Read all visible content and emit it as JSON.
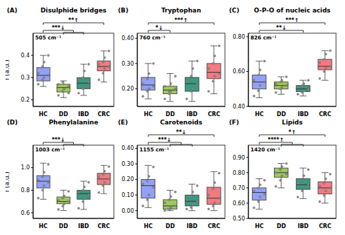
{
  "chart_data": [
    {
      "type": "box",
      "panel_label": "(A)",
      "title": "Disulphide bridges",
      "annotation": "505 cm⁻¹",
      "y_label": "I (a.u.)",
      "categories": [
        "HC",
        "DD",
        "IBD",
        "CRC"
      ],
      "colors": [
        "#7f8ff4",
        "#8cbf3f",
        "#17876a",
        "#f0636b"
      ],
      "ylim": [
        0.17,
        0.5
      ],
      "yticks": [
        0.2,
        0.3,
        0.4
      ],
      "boxes": [
        {
          "whisker_low": 0.26,
          "q1": 0.285,
          "median": 0.31,
          "q3": 0.345,
          "whisker_high": 0.4
        },
        {
          "whisker_low": 0.21,
          "q1": 0.235,
          "median": 0.255,
          "q3": 0.27,
          "whisker_high": 0.285
        },
        {
          "whisker_low": 0.22,
          "q1": 0.25,
          "median": 0.275,
          "q3": 0.3,
          "whisker_high": 0.36
        },
        {
          "whisker_low": 0.28,
          "q1": 0.33,
          "median": 0.35,
          "q3": 0.375,
          "whisker_high": 0.42
        }
      ],
      "points": [
        [
          0.27,
          0.29,
          0.3,
          0.31,
          0.32,
          0.35,
          0.37,
          0.4
        ],
        [
          0.22,
          0.24,
          0.25,
          0.26,
          0.27,
          0.28,
          0.25,
          0.23
        ],
        [
          0.23,
          0.25,
          0.26,
          0.28,
          0.29,
          0.3,
          0.33,
          0.36
        ],
        [
          0.29,
          0.32,
          0.34,
          0.35,
          0.36,
          0.37,
          0.39,
          0.42
        ]
      ],
      "significance": [
        {
          "text": "***↓",
          "groups": [
            "HC",
            "DD",
            "IBD"
          ]
        },
        {
          "text": "**↑",
          "groups": [
            "HC",
            "CRC"
          ]
        }
      ]
    },
    {
      "type": "box",
      "panel_label": "(B)",
      "title": "Tryptophan",
      "annotation": "760 cm⁻¹",
      "categories": [
        "HC",
        "DD",
        "IBD",
        "CRC"
      ],
      "colors": [
        "#7f8ff4",
        "#8cbf3f",
        "#17876a",
        "#f0636b"
      ],
      "ylim": [
        0.13,
        0.42
      ],
      "yticks": [
        {
          "value": 0.2,
          "label": "0.20"
        },
        {
          "value": 0.3,
          "label": "0.30"
        },
        {
          "value": 0.4,
          "label": "0.40"
        }
      ],
      "boxes": [
        {
          "whisker_low": 0.16,
          "q1": 0.195,
          "median": 0.215,
          "q3": 0.245,
          "whisker_high": 0.3
        },
        {
          "whisker_low": 0.15,
          "q1": 0.18,
          "median": 0.195,
          "q3": 0.21,
          "whisker_high": 0.26
        },
        {
          "whisker_low": 0.15,
          "q1": 0.19,
          "median": 0.22,
          "q3": 0.245,
          "whisker_high": 0.31
        },
        {
          "whisker_low": 0.18,
          "q1": 0.24,
          "median": 0.265,
          "q3": 0.3,
          "whisker_high": 0.37
        }
      ],
      "points": [
        [
          0.17,
          0.19,
          0.2,
          0.21,
          0.22,
          0.24,
          0.26,
          0.3
        ],
        [
          0.16,
          0.18,
          0.19,
          0.2,
          0.21,
          0.19,
          0.22,
          0.25
        ],
        [
          0.16,
          0.19,
          0.2,
          0.22,
          0.23,
          0.25,
          0.28,
          0.31
        ],
        [
          0.19,
          0.23,
          0.25,
          0.26,
          0.28,
          0.3,
          0.33,
          0.37
        ]
      ],
      "significance": [
        {
          "text": "*↓",
          "groups": [
            "HC",
            "DD"
          ]
        },
        {
          "text": "***↑",
          "groups": [
            "HC",
            "CRC"
          ]
        }
      ]
    },
    {
      "type": "box",
      "panel_label": "(C)",
      "title": "O-P-O of nucleic acids",
      "annotation": "826 cm⁻¹",
      "categories": [
        "HC",
        "DD",
        "IBD",
        "CRC"
      ],
      "colors": [
        "#7f8ff4",
        "#8cbf3f",
        "#17876a",
        "#f0636b"
      ],
      "ylim": [
        0.4,
        0.82
      ],
      "yticks": [
        {
          "value": 0.4,
          "label": "0.40"
        },
        {
          "value": 0.6,
          "label": "0.60"
        },
        {
          "value": 0.8,
          "label": "0.80"
        }
      ],
      "boxes": [
        {
          "whisker_low": 0.45,
          "q1": 0.5,
          "median": 0.54,
          "q3": 0.58,
          "whisker_high": 0.66
        },
        {
          "whisker_low": 0.47,
          "q1": 0.5,
          "median": 0.52,
          "q3": 0.54,
          "whisker_high": 0.57
        },
        {
          "whisker_low": 0.46,
          "q1": 0.485,
          "median": 0.5,
          "q3": 0.52,
          "whisker_high": 0.55
        },
        {
          "whisker_low": 0.55,
          "q1": 0.61,
          "median": 0.63,
          "q3": 0.67,
          "whisker_high": 0.72
        }
      ],
      "points": [
        [
          0.46,
          0.49,
          0.52,
          0.54,
          0.55,
          0.58,
          0.61,
          0.66
        ],
        [
          0.48,
          0.5,
          0.51,
          0.52,
          0.53,
          0.54,
          0.55,
          0.57
        ],
        [
          0.47,
          0.48,
          0.49,
          0.5,
          0.51,
          0.52,
          0.53,
          0.55
        ],
        [
          0.56,
          0.6,
          0.62,
          0.63,
          0.65,
          0.67,
          0.7,
          0.72
        ]
      ],
      "significance": [
        {
          "text": "**↓",
          "groups": [
            "HC",
            "IBD"
          ]
        },
        {
          "text": "***↑",
          "groups": [
            "HC",
            "CRC"
          ]
        }
      ]
    },
    {
      "type": "box",
      "panel_label": "(D)",
      "title": "Phenylalanine",
      "annotation": "1003 cm⁻¹",
      "y_label": "I (a.u.)",
      "categories": [
        "HC",
        "DD",
        "IBD",
        "CRC"
      ],
      "colors": [
        "#7f8ff4",
        "#8cbf3f",
        "#17876a",
        "#f0636b"
      ],
      "ylim": [
        0.55,
        1.2
      ],
      "yticks": [
        0.6,
        0.8,
        {
          "value": 1.0,
          "label": "1.0"
        }
      ],
      "boxes": [
        {
          "whisker_low": 0.72,
          "q1": 0.82,
          "median": 0.88,
          "q3": 0.93,
          "whisker_high": 1.04
        },
        {
          "whisker_low": 0.62,
          "q1": 0.68,
          "median": 0.7,
          "q3": 0.74,
          "whisker_high": 0.8
        },
        {
          "whisker_low": 0.63,
          "q1": 0.72,
          "median": 0.77,
          "q3": 0.8,
          "whisker_high": 0.88
        },
        {
          "whisker_low": 0.77,
          "q1": 0.85,
          "median": 0.9,
          "q3": 0.95,
          "whisker_high": 1.02
        }
      ],
      "points": [
        [
          0.73,
          0.8,
          0.84,
          0.87,
          0.89,
          0.92,
          0.96,
          1.03
        ],
        [
          0.63,
          0.66,
          0.68,
          0.7,
          0.71,
          0.73,
          0.75,
          0.79
        ],
        [
          0.64,
          0.7,
          0.73,
          0.76,
          0.78,
          0.8,
          0.83,
          0.87
        ],
        [
          0.78,
          0.84,
          0.87,
          0.9,
          0.92,
          0.94,
          0.97,
          1.01
        ]
      ],
      "significance": [
        {
          "text": "***↓",
          "groups": [
            "HC",
            "DD",
            "IBD"
          ]
        }
      ]
    },
    {
      "type": "box",
      "panel_label": "(E)",
      "title": "Carotenoids",
      "annotation": "1155 cm⁻¹",
      "categories": [
        "HC",
        "DD",
        "IBD",
        "CRC"
      ],
      "colors": [
        "#7f8ff4",
        "#8cbf3f",
        "#17876a",
        "#f0636b"
      ],
      "ylim": [
        -0.05,
        0.42
      ],
      "yticks": [
        {
          "value": 0,
          "label": "0.00"
        },
        {
          "value": 0.1,
          "label": "0.10"
        },
        {
          "value": 0.2,
          "label": "0.20"
        },
        {
          "value": 0.3,
          "label": "0.30"
        },
        {
          "value": 0.4,
          "label": "0.40"
        }
      ],
      "boxes": [
        {
          "whisker_low": 0.02,
          "q1": 0.08,
          "median": 0.16,
          "q3": 0.2,
          "whisker_high": 0.29
        },
        {
          "whisker_low": 0.0,
          "q1": 0.01,
          "median": 0.03,
          "q3": 0.07,
          "whisker_high": 0.13
        },
        {
          "whisker_low": 0.0,
          "q1": 0.03,
          "median": 0.06,
          "q3": 0.1,
          "whisker_high": 0.17
        },
        {
          "whisker_low": 0.0,
          "q1": 0.04,
          "median": 0.08,
          "q3": 0.15,
          "whisker_high": 0.25
        }
      ],
      "points": [
        [
          0.03,
          0.07,
          0.1,
          0.15,
          0.17,
          0.19,
          0.22,
          0.28
        ],
        [
          0.0,
          0.01,
          0.02,
          0.03,
          0.05,
          0.07,
          0.09,
          0.12
        ],
        [
          0.01,
          0.02,
          0.04,
          0.06,
          0.07,
          0.09,
          0.12,
          0.16
        ],
        [
          0.01,
          0.03,
          0.05,
          0.08,
          0.1,
          0.14,
          0.18,
          0.24
        ]
      ],
      "significance": [
        {
          "text": "***↓",
          "groups": [
            "HC",
            "DD",
            "IBD"
          ]
        },
        {
          "text": "**↓",
          "groups": [
            "HC",
            "CRC"
          ]
        }
      ]
    },
    {
      "type": "box",
      "panel_label": "(F)",
      "title": "Lipids",
      "annotation": "1420 cm⁻¹",
      "categories": [
        "HC",
        "DD",
        "IBD",
        "CRC"
      ],
      "colors": [
        "#7f8ff4",
        "#8cbf3f",
        "#17876a",
        "#f0636b"
      ],
      "ylim": [
        0.5,
        0.98
      ],
      "yticks": [
        {
          "value": 0.5,
          "label": "0.50"
        },
        {
          "value": 0.6,
          "label": "0.60"
        },
        {
          "value": 0.7,
          "label": "0.70"
        },
        {
          "value": 0.8,
          "label": "0.80"
        },
        {
          "value": 0.9,
          "label": "0.90"
        }
      ],
      "boxes": [
        {
          "whisker_low": 0.56,
          "q1": 0.62,
          "median": 0.67,
          "q3": 0.7,
          "whisker_high": 0.76
        },
        {
          "whisker_low": 0.7,
          "q1": 0.77,
          "median": 0.8,
          "q3": 0.83,
          "whisker_high": 0.86
        },
        {
          "whisker_low": 0.63,
          "q1": 0.69,
          "median": 0.72,
          "q3": 0.76,
          "whisker_high": 0.83
        },
        {
          "whisker_low": 0.6,
          "q1": 0.66,
          "median": 0.7,
          "q3": 0.74,
          "whisker_high": 0.8
        }
      ],
      "points": [
        [
          0.57,
          0.61,
          0.64,
          0.66,
          0.68,
          0.7,
          0.72,
          0.75
        ],
        [
          0.71,
          0.75,
          0.78,
          0.79,
          0.8,
          0.82,
          0.84,
          0.86
        ],
        [
          0.64,
          0.68,
          0.7,
          0.72,
          0.73,
          0.75,
          0.78,
          0.82
        ],
        [
          0.61,
          0.65,
          0.68,
          0.7,
          0.71,
          0.73,
          0.76,
          0.79
        ]
      ],
      "significance": [
        {
          "text": "****↑",
          "groups": [
            "HC",
            "DD",
            "IBD"
          ]
        },
        {
          "text": "*↑",
          "groups": [
            "HC",
            "CRC"
          ]
        }
      ]
    }
  ]
}
